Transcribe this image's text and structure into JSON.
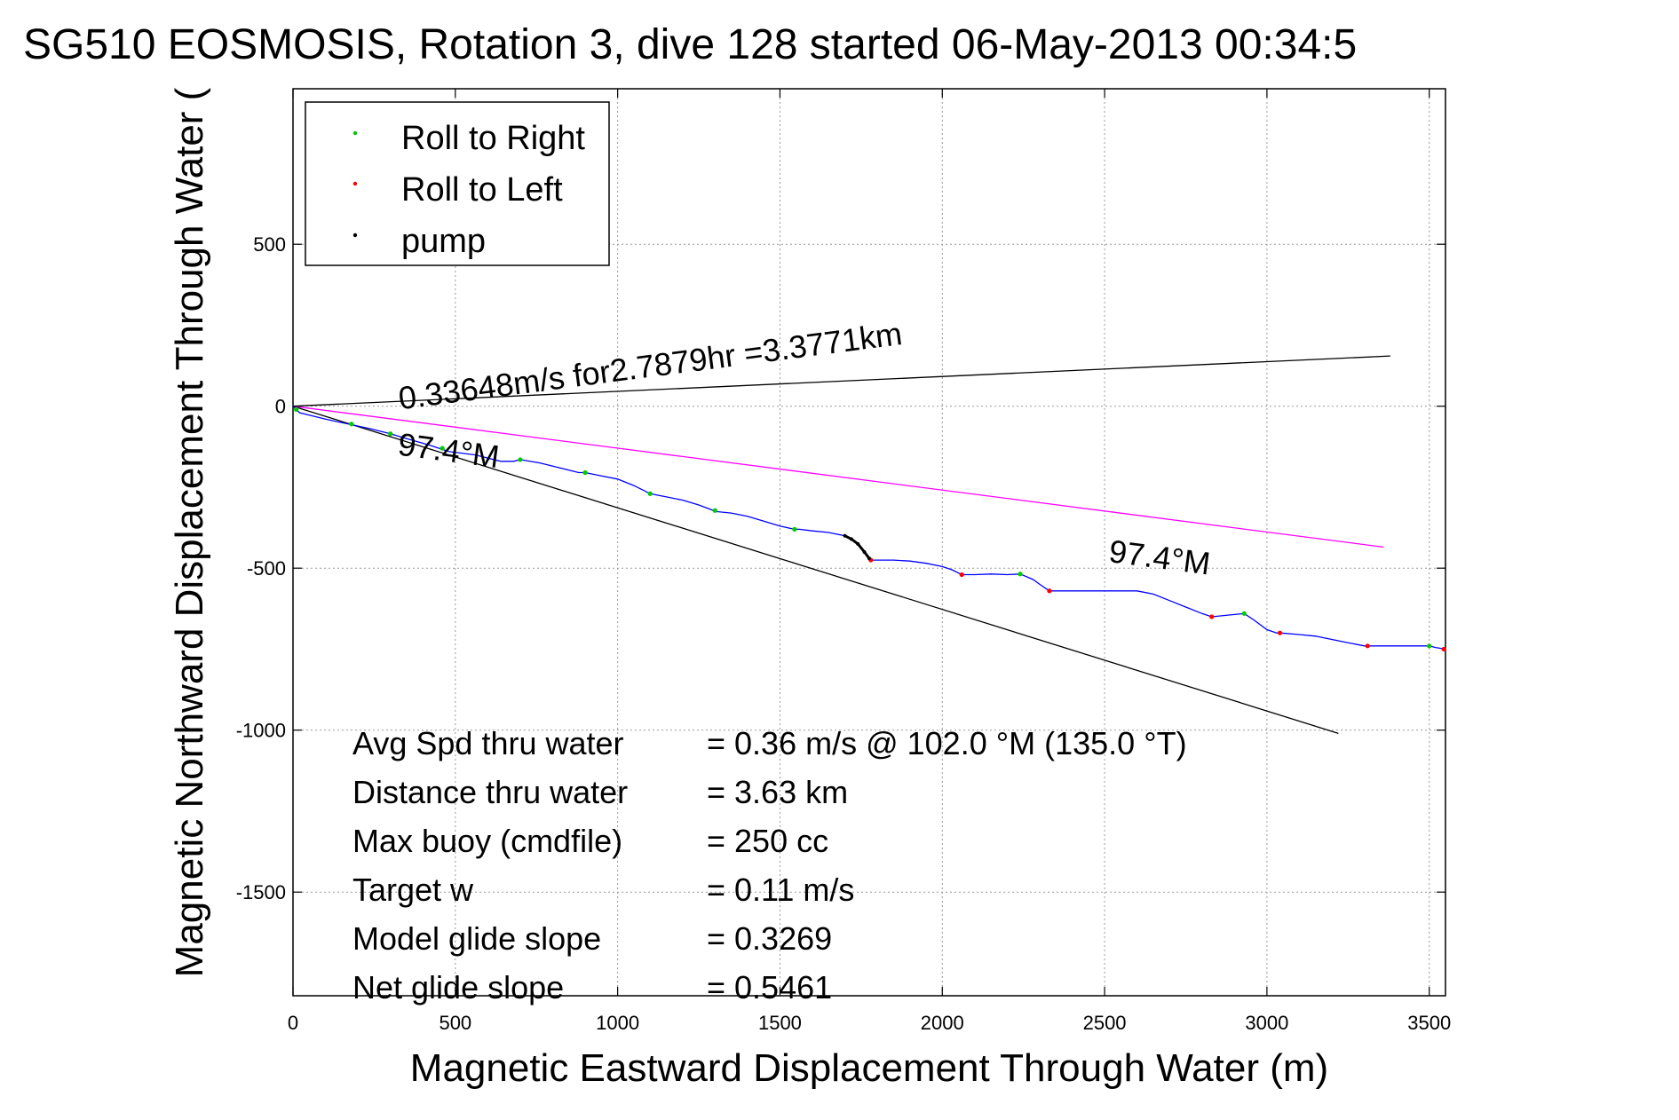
{
  "chart_data": {
    "type": "line",
    "title": "SG510 EOSMOSIS, Rotation 3, dive 128 started 06-May-2013 00:34:5",
    "xlabel": "Magnetic Eastward Displacement Through Water (m)",
    "ylabel": "Magnetic Northward Displacement Through Water (",
    "xlim": [
      0,
      3550
    ],
    "ylim": [
      -1820,
      980
    ],
    "xticks": [
      0,
      500,
      1000,
      1500,
      2000,
      2500,
      3000,
      3500
    ],
    "yticks": [
      500,
      0,
      -500,
      -1000,
      -1500
    ],
    "xtick_labels": [
      "0",
      "500",
      "1000",
      "1500",
      "2000",
      "2500",
      "3000",
      "3500"
    ],
    "ytick_labels": [
      "500",
      "0",
      "-500",
      "-1000",
      "-1500"
    ],
    "grid": true,
    "legend": {
      "placement": "top-left",
      "entries": [
        {
          "label": "Roll to Right",
          "color": "#00cc00"
        },
        {
          "label": "Roll to Left",
          "color": "#ff0000"
        },
        {
          "label": "pump",
          "color": "#000000"
        }
      ]
    },
    "series": [
      {
        "style": "line",
        "color": "#0000ff",
        "x": [
          0,
          20,
          60,
          100,
          170,
          240,
          300,
          350,
          420,
          480,
          560,
          640,
          680,
          700,
          760,
          820,
          880,
          900,
          950,
          1000,
          1050,
          1080,
          1100,
          1150,
          1200,
          1250,
          1290,
          1300,
          1350,
          1400,
          1450,
          1500,
          1545,
          1560,
          1600,
          1650,
          1700,
          1740,
          1780,
          1800,
          1850,
          1900,
          1950,
          2000,
          2030,
          2060,
          2100,
          2150,
          2200,
          2240,
          2280,
          2300,
          2330,
          2400,
          2500,
          2600,
          2650,
          2700,
          2750,
          2800,
          2830,
          2880,
          2930,
          2960,
          3000,
          3030,
          3040,
          3100,
          3150,
          3200,
          3250,
          3300,
          3350,
          3400,
          3450,
          3500,
          3520,
          3550
        ],
        "y": [
          0,
          -20,
          -30,
          -40,
          -55,
          -70,
          -85,
          -100,
          -120,
          -140,
          -150,
          -170,
          -170,
          -165,
          -175,
          -190,
          -205,
          -205,
          -215,
          -225,
          -245,
          -260,
          -270,
          -280,
          -290,
          -305,
          -320,
          -325,
          -330,
          -340,
          -355,
          -370,
          -380,
          -380,
          -385,
          -390,
          -400,
          -425,
          -475,
          -475,
          -475,
          -478,
          -485,
          -495,
          -505,
          -520,
          -520,
          -518,
          -520,
          -518,
          -535,
          -550,
          -570,
          -570,
          -570,
          -570,
          -580,
          -600,
          -620,
          -640,
          -650,
          -645,
          -640,
          -660,
          -690,
          -700,
          -700,
          -705,
          -710,
          -720,
          -730,
          -740,
          -740,
          -740,
          -740,
          -740,
          -745,
          -750
        ]
      },
      {
        "name": "Roll to Right",
        "style": "markers",
        "color": "#00cc00",
        "x": [
          10,
          180,
          300,
          460,
          700,
          900,
          1100,
          1300,
          1545,
          2240,
          2930,
          3500
        ],
        "y": [
          -10,
          -55,
          -85,
          -130,
          -165,
          -205,
          -270,
          -322,
          -380,
          -518,
          -640,
          -740
        ]
      },
      {
        "name": "Roll to Left",
        "style": "markers",
        "color": "#ff0000",
        "x": [
          1780,
          2060,
          2330,
          2830,
          3040,
          3310,
          3545
        ],
        "y": [
          -475,
          -520,
          -570,
          -650,
          -700,
          -740,
          -750
        ]
      },
      {
        "name": "pump",
        "style": "markers",
        "color": "#000000",
        "x": [
          1700,
          1720,
          1740,
          1760,
          1775
        ],
        "y": [
          -400,
          -410,
          -425,
          -450,
          -470
        ]
      },
      {
        "style": "reference-line",
        "color": "#000000",
        "x": [
          0,
          3380
        ],
        "y": [
          0,
          155
        ]
      },
      {
        "style": "reference-line",
        "color": "#000000",
        "x": [
          0,
          3220
        ],
        "y": [
          0,
          -1010
        ]
      },
      {
        "style": "reference-line",
        "color": "#ff00ff",
        "x": [
          0,
          3360
        ],
        "y": [
          0,
          -435
        ]
      }
    ],
    "annotations": [
      {
        "text": "0.33648m/s for2.7879hr =3.3771km",
        "x": 330,
        "y": -10,
        "rotate": -7.4
      },
      {
        "text": "97.4°M",
        "x": 320,
        "y": -150,
        "rotate": 7.4
      },
      {
        "text": "97.4°M",
        "x": 2510,
        "y": -480,
        "rotate": 7.4
      }
    ],
    "stats": [
      {
        "label": "Avg Spd thru water",
        "value": "=  0.36 m/s @ 102.0 °M (135.0 °T)"
      },
      {
        "label": "Distance thru water",
        "value": "=  3.63 km"
      },
      {
        "label": "Max buoy (cmdfile)",
        "value": "= 250 cc"
      },
      {
        "label": "Target w",
        "value": "= 0.11 m/s"
      },
      {
        "label": "Model glide slope",
        "value": "= 0.3269"
      },
      {
        "label": "Net glide slope",
        "value": "= 0.5461"
      }
    ]
  }
}
